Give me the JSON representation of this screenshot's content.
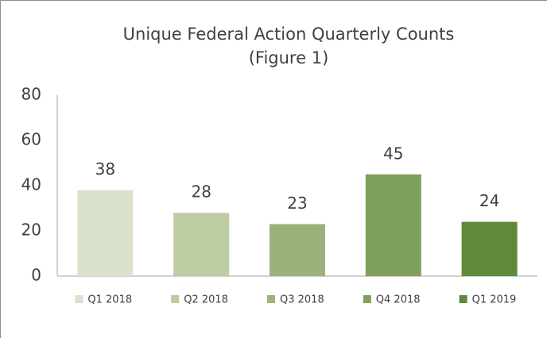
{
  "chart_data": {
    "type": "bar",
    "title": [
      "Unique Federal Action Quarterly Counts",
      "(Figure 1)"
    ],
    "categories": [
      "Q1 2018",
      "Q2 2018",
      "Q3 2018",
      "Q4 2018",
      "Q1 2019"
    ],
    "values": [
      38,
      28,
      23,
      45,
      24
    ],
    "colors": [
      "#d9e3cc",
      "#bdcca3",
      "#9cb27c",
      "#7fa05a",
      "#5e8a3a"
    ],
    "ylim": [
      0,
      80
    ],
    "yticks": [
      0,
      20,
      40,
      60,
      80
    ],
    "grid": false,
    "legend": "bottom"
  }
}
